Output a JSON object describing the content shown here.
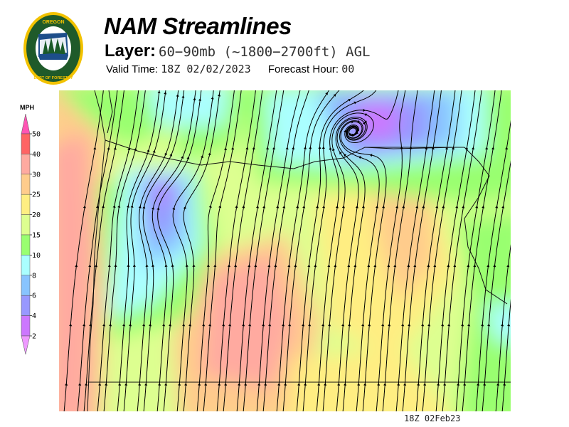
{
  "header": {
    "title": "NAM Streamlines",
    "layer_label": "Layer:",
    "layer_value": "60−90mb (~1800−2700ft) AGL",
    "valid_label": "Valid Time:",
    "valid_value": "18Z 02/02/2023",
    "forecast_label": "Forecast Hour:",
    "forecast_value": "00"
  },
  "logo": {
    "text_top": "OREGON",
    "text_bottom": "DEPARTMENT OF FORESTRY"
  },
  "legend": {
    "unit": "MPH",
    "ticks": [
      "50",
      "40",
      "30",
      "25",
      "20",
      "15",
      "10",
      "8",
      "6",
      "4",
      "2"
    ],
    "colors": {
      "above_50": "#ff55b4",
      "40-50": "#ff6464",
      "30-40": "#ffaaa0",
      "25-30": "#ffcc8c",
      "20-25": "#ffee82",
      "15-20": "#ddff90",
      "10-15": "#99ff70",
      "8-10": "#aaffff",
      "6-8": "#88c4ff",
      "4-6": "#9898ff",
      "2-4": "#cc77ff",
      "below_2": "#ee99ff"
    }
  },
  "footer": {
    "stamp": "18Z 02Feb23"
  }
}
